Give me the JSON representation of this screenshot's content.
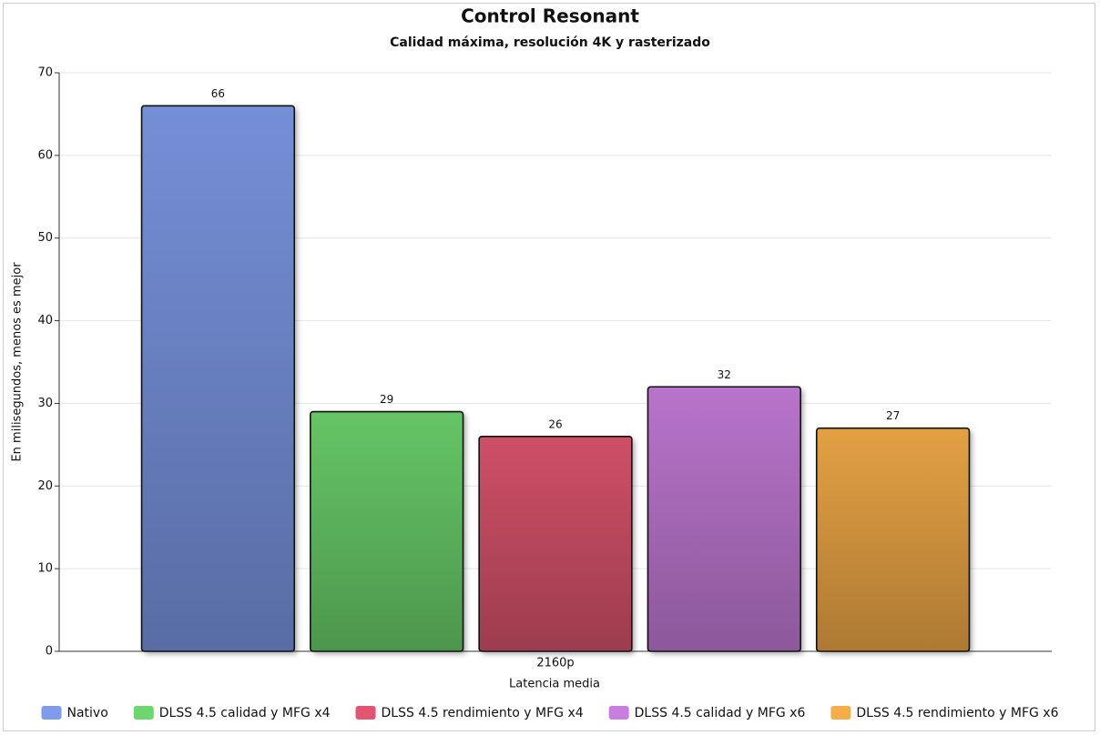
{
  "chart_data": {
    "type": "bar",
    "title": "Control Resonant",
    "subtitle": "Calidad máxima, resolución 4K y rasterizado",
    "y_label": "En milisegundos, menos es mejor",
    "x_label": "Latencia media",
    "categories": [
      "2160p"
    ],
    "series": [
      {
        "name": "Nativo",
        "color": "#7f9bea",
        "values": [
          66
        ]
      },
      {
        "name": "DLSS 4.5 calidad y MFG x4",
        "color": "#6ed66e",
        "values": [
          29
        ]
      },
      {
        "name": "DLSS 4.5 rendimiento y MFG x4",
        "color": "#e05670",
        "values": [
          26
        ]
      },
      {
        "name": "DLSS 4.5 calidad y MFG x6",
        "color": "#c87edc",
        "values": [
          32
        ]
      },
      {
        "name": "DLSS 4.5 rendimiento y MFG x6",
        "color": "#f7ae4a",
        "values": [
          27
        ]
      }
    ],
    "ylim": [
      0,
      70
    ],
    "yticks": [
      0,
      10,
      20,
      30,
      40,
      50,
      60,
      70
    ],
    "grid": true
  }
}
